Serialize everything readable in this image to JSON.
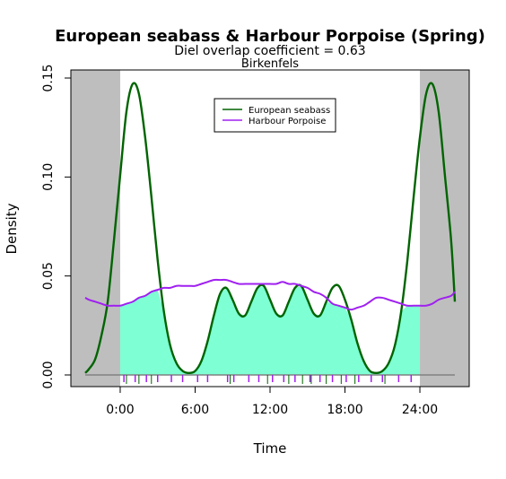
{
  "chart_data": {
    "type": "line",
    "title": "European seabass & Harbour Porpoise (Spring)",
    "subtitle": "Diel overlap coefficient =  0.63",
    "subtitle2": "Birkenfels",
    "xlabel": "Time",
    "ylabel": "Density",
    "xlim": [
      -3,
      27
    ],
    "ylim": [
      0,
      0.15
    ],
    "x_ticks": [
      0,
      6,
      12,
      18,
      24
    ],
    "x_tick_labels": [
      "0:00",
      "6:00",
      "12:00",
      "18:00",
      "24:00"
    ],
    "y_ticks": [
      0,
      0.05,
      0.1,
      0.15
    ],
    "y_tick_labels": [
      "0.00",
      "0.05",
      "0.10",
      "0.15"
    ],
    "shaded_regions": [
      [
        -3,
        0
      ],
      [
        24,
        27
      ]
    ],
    "legend_position": "top-center",
    "series": [
      {
        "name": "European seabass",
        "color": "#006400",
        "x": [
          -3,
          -2.5,
          -2,
          -1.5,
          -1,
          -0.5,
          0,
          0.5,
          1,
          1.5,
          2,
          2.5,
          3,
          3.5,
          4,
          4.5,
          5,
          5.5,
          6,
          6.5,
          7,
          7.5,
          8,
          8.5,
          9,
          9.5,
          10,
          10.5,
          11,
          11.5,
          12,
          12.5,
          13,
          13.5,
          14,
          14.5,
          15,
          15.5,
          16,
          16.5,
          17,
          17.5,
          18,
          18.5,
          19,
          19.5,
          20,
          20.5,
          21,
          21.5,
          22,
          22.5,
          23,
          23.5,
          24,
          24.5,
          25,
          25.5,
          26,
          26.5,
          27
        ],
        "values": [
          0.001,
          0.003,
          0.008,
          0.02,
          0.037,
          0.068,
          0.101,
          0.133,
          0.147,
          0.142,
          0.12,
          0.09,
          0.058,
          0.032,
          0.015,
          0.006,
          0.002,
          0.001,
          0.002,
          0.007,
          0.017,
          0.03,
          0.041,
          0.044,
          0.038,
          0.031,
          0.03,
          0.037,
          0.044,
          0.045,
          0.038,
          0.031,
          0.03,
          0.037,
          0.044,
          0.045,
          0.038,
          0.031,
          0.03,
          0.037,
          0.044,
          0.045,
          0.038,
          0.028,
          0.016,
          0.007,
          0.002,
          0.001,
          0.002,
          0.006,
          0.015,
          0.032,
          0.058,
          0.09,
          0.12,
          0.142,
          0.147,
          0.133,
          0.101,
          0.068,
          0.037
        ]
      },
      {
        "name": "Harbour Porpoise",
        "color": "#a020f0",
        "x": [
          -3,
          -2.5,
          -2,
          -1.5,
          -1,
          -0.5,
          0,
          0.5,
          1,
          1.5,
          2,
          2.5,
          3,
          3.5,
          4,
          4.5,
          5,
          5.5,
          6,
          6.5,
          7,
          7.5,
          8,
          8.5,
          9,
          9.5,
          10,
          10.5,
          11,
          11.5,
          12,
          12.5,
          13,
          13.5,
          14,
          14.5,
          15,
          15.5,
          16,
          16.5,
          17,
          17.5,
          18,
          18.5,
          19,
          19.5,
          20,
          20.5,
          21,
          21.5,
          22,
          22.5,
          23,
          23.5,
          24,
          24.5,
          25,
          25.5,
          26,
          26.5,
          27
        ],
        "values": [
          0.039,
          0.038,
          0.037,
          0.036,
          0.035,
          0.035,
          0.035,
          0.036,
          0.037,
          0.039,
          0.04,
          0.042,
          0.043,
          0.044,
          0.044,
          0.045,
          0.045,
          0.045,
          0.045,
          0.046,
          0.047,
          0.048,
          0.048,
          0.048,
          0.047,
          0.046,
          0.046,
          0.046,
          0.046,
          0.046,
          0.046,
          0.046,
          0.047,
          0.046,
          0.046,
          0.045,
          0.044,
          0.042,
          0.041,
          0.039,
          0.036,
          0.035,
          0.034,
          0.033,
          0.034,
          0.035,
          0.037,
          0.039,
          0.039,
          0.038,
          0.037,
          0.036,
          0.035,
          0.035,
          0.035,
          0.035,
          0.036,
          0.038,
          0.039,
          0.04,
          0.042
        ]
      }
    ],
    "rug": {
      "series_a_x": [
        0.5,
        1.5,
        2.5,
        8.8,
        11.8,
        13.5,
        14.6,
        15.3,
        16.5,
        17.7,
        18.8,
        21.2
      ],
      "series_b_x": [
        0.3,
        1.2,
        2.1,
        3.0,
        4.1,
        5.0,
        6.2,
        7.0,
        8.6,
        9.1,
        10.3,
        11.1,
        12.2,
        13.1,
        14.0,
        15.2,
        16.0,
        17.0,
        18.1,
        19.1,
        20.1,
        21.0,
        22.3,
        23.3
      ]
    },
    "overlap_fill_color": "#7fffd4"
  }
}
